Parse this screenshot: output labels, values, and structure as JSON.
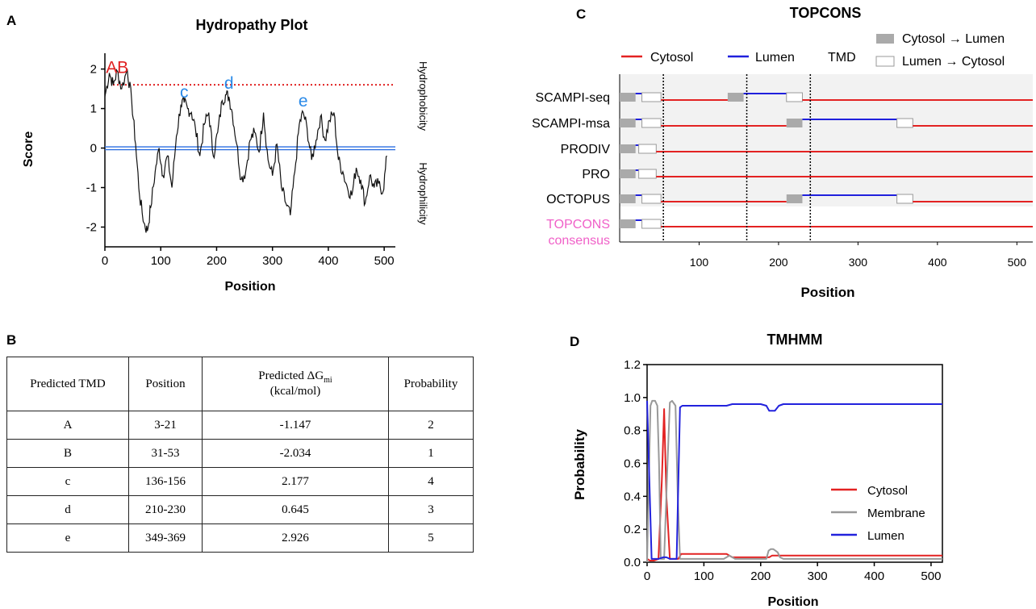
{
  "panel_labels": {
    "a": "A",
    "b": "B",
    "c": "C",
    "d": "D"
  },
  "hydro": {
    "title": "Hydropathy Plot",
    "xlabel": "Position",
    "ylabel": "Score",
    "right_label_top": "Hydrophobicity",
    "right_label_bottom": "Hydrophilicity",
    "xticks": [
      "0",
      "100",
      "200",
      "300",
      "400",
      "500"
    ],
    "yticks": [
      "2",
      "1",
      "0",
      "-1",
      "-2"
    ],
    "threshold": 1.6,
    "peak_labels": [
      {
        "text": "A",
        "x": 12,
        "y": 1.9,
        "color": "#e02020"
      },
      {
        "text": "B",
        "x": 32,
        "y": 1.9,
        "color": "#e02020"
      },
      {
        "text": "c",
        "x": 142,
        "y": 1.28,
        "color": "#2a8ae8"
      },
      {
        "text": "d",
        "x": 222,
        "y": 1.5,
        "color": "#2a8ae8"
      },
      {
        "text": "e",
        "x": 355,
        "y": 1.05,
        "color": "#2a8ae8"
      }
    ]
  },
  "table": {
    "headers": [
      "Predicted TMD",
      "Position",
      "Predicted ΔG",
      "mi",
      "(kcal/mol)",
      "Probability"
    ],
    "rows": [
      [
        "A",
        "3-21",
        "-1.147",
        "2"
      ],
      [
        "B",
        "31-53",
        "-2.034",
        "1"
      ],
      [
        "c",
        "136-156",
        "2.177",
        "4"
      ],
      [
        "d",
        "210-230",
        "0.645",
        "3"
      ],
      [
        "e",
        "349-369",
        "2.926",
        "5"
      ]
    ]
  },
  "topcons": {
    "title": "TOPCONS",
    "xlabel": "Position",
    "xticks": [
      "100",
      "200",
      "300",
      "400",
      "500"
    ],
    "legend": {
      "cytosol": "Cytosol",
      "lumen": "Lumen",
      "tmd": "TMD",
      "c2l": "Cytosol → Lumen",
      "l2c": "Lumen → Cytosol"
    },
    "colors": {
      "cytosol": "#e32222",
      "lumen": "#2020dd",
      "consensus": "#f060c8"
    },
    "tracks": [
      {
        "name": "SCAMPI-seq",
        "segments": [
          [
            0,
            20,
            "c2l"
          ],
          [
            20,
            28,
            "lumen"
          ],
          [
            28,
            52,
            "l2c"
          ],
          [
            52,
            136,
            "cyto"
          ],
          [
            136,
            156,
            "c2l"
          ],
          [
            156,
            210,
            "lumen"
          ],
          [
            210,
            230,
            "l2c"
          ],
          [
            230,
            520,
            "cyto"
          ]
        ]
      },
      {
        "name": "SCAMPI-msa",
        "segments": [
          [
            0,
            20,
            "c2l"
          ],
          [
            20,
            28,
            "lumen"
          ],
          [
            28,
            52,
            "l2c"
          ],
          [
            52,
            210,
            "cyto"
          ],
          [
            210,
            230,
            "c2l"
          ],
          [
            230,
            349,
            "lumen"
          ],
          [
            349,
            369,
            "l2c"
          ],
          [
            369,
            520,
            "cyto"
          ]
        ]
      },
      {
        "name": "PRODIV",
        "segments": [
          [
            0,
            20,
            "c2l"
          ],
          [
            20,
            24,
            "lumen"
          ],
          [
            24,
            46,
            "l2c"
          ],
          [
            46,
            520,
            "cyto"
          ]
        ]
      },
      {
        "name": "PRO",
        "segments": [
          [
            0,
            20,
            "c2l"
          ],
          [
            20,
            24,
            "lumen"
          ],
          [
            24,
            46,
            "l2c"
          ],
          [
            46,
            520,
            "cyto"
          ]
        ]
      },
      {
        "name": "OCTOPUS",
        "segments": [
          [
            0,
            20,
            "c2l"
          ],
          [
            20,
            28,
            "lumen"
          ],
          [
            28,
            52,
            "l2c"
          ],
          [
            52,
            210,
            "cyto"
          ],
          [
            210,
            230,
            "c2l"
          ],
          [
            230,
            349,
            "lumen"
          ],
          [
            349,
            369,
            "l2c"
          ],
          [
            369,
            520,
            "cyto"
          ]
        ]
      },
      {
        "name": "TOPCONS",
        "name2": "consensus",
        "segments": [
          [
            0,
            20,
            "c2l"
          ],
          [
            20,
            28,
            "lumen"
          ],
          [
            28,
            52,
            "l2c"
          ],
          [
            52,
            520,
            "cyto"
          ]
        ]
      }
    ],
    "dashed_lines": [
      55,
      160,
      240
    ]
  },
  "chart_data": [
    {
      "type": "line",
      "title": "Hydropathy Plot",
      "xlabel": "Position",
      "ylabel": "Score",
      "xlim": [
        0,
        520
      ],
      "ylim": [
        -2.5,
        2.4
      ],
      "threshold": 1.6,
      "baseline": 0,
      "series": [
        {
          "x": [
            0,
            8,
            15,
            22,
            30,
            40,
            48,
            55,
            62,
            70,
            76,
            82,
            90,
            97,
            104,
            112,
            120,
            128,
            136,
            142,
            148,
            155,
            162,
            170,
            178,
            186,
            194,
            202,
            210,
            216,
            222,
            228,
            236,
            244,
            252,
            260,
            268,
            276,
            284,
            292,
            300,
            308,
            316,
            324,
            332,
            340,
            348,
            355,
            362,
            370,
            378,
            386,
            394,
            402,
            410,
            418,
            426,
            434,
            442,
            450,
            458,
            466,
            474,
            482,
            490,
            498,
            505
          ],
          "y": [
            1.3,
            1.9,
            1.6,
            1.95,
            1.5,
            2.0,
            1.2,
            0.1,
            -1.2,
            -1.9,
            -2.1,
            -1.5,
            -0.6,
            0.0,
            -0.7,
            -0.2,
            -1.0,
            0.3,
            1.1,
            1.15,
            1.0,
            0.9,
            0.5,
            -0.2,
            0.6,
            0.9,
            -0.2,
            0.4,
            1.2,
            1.35,
            1.3,
            0.9,
            0.1,
            -0.8,
            -0.6,
            0.2,
            0.4,
            -0.1,
            0.9,
            -0.3,
            -0.7,
            0.1,
            -1.0,
            -1.4,
            -1.7,
            -0.6,
            0.6,
            0.9,
            0.5,
            -0.3,
            0.2,
            0.8,
            0.2,
            0.7,
            0.9,
            -0.3,
            -0.6,
            -1.0,
            -1.2,
            -0.5,
            -0.8,
            -1.4,
            -0.7,
            -1.0,
            -0.9,
            -1.1,
            -0.2
          ]
        }
      ]
    },
    {
      "type": "line",
      "title": "TMHMM",
      "xlabel": "Position",
      "ylabel": "Probability",
      "xlim": [
        0,
        520
      ],
      "ylim": [
        0,
        1.2
      ],
      "xticks": [
        "0",
        "100",
        "200",
        "300",
        "400",
        "500"
      ],
      "yticks": [
        "0.0",
        "0.2",
        "0.4",
        "0.6",
        "0.8",
        "1.0",
        "1.2"
      ],
      "legend_position": "bottom-right",
      "series": [
        {
          "name": "Cytosol",
          "color": "#e32222",
          "x": [
            0,
            5,
            12,
            20,
            26,
            30,
            34,
            40,
            55,
            60,
            140,
            150,
            215,
            220,
            230,
            240,
            520
          ],
          "y": [
            0.02,
            0.01,
            0.01,
            0.02,
            0.5,
            0.93,
            0.4,
            0.02,
            0.02,
            0.05,
            0.05,
            0.03,
            0.03,
            0.04,
            0.04,
            0.04,
            0.04
          ]
        },
        {
          "name": "Membrane",
          "color": "#999999",
          "x": [
            0,
            3,
            6,
            9,
            14,
            18,
            21,
            24,
            30,
            36,
            40,
            44,
            50,
            54,
            58,
            62,
            135,
            140,
            145,
            150,
            155,
            210,
            214,
            218,
            222,
            226,
            230,
            234,
            240,
            520
          ],
          "y": [
            0.0,
            0.5,
            0.95,
            0.98,
            0.98,
            0.95,
            0.6,
            0.02,
            0.02,
            0.6,
            0.97,
            0.98,
            0.95,
            0.4,
            0.02,
            0.02,
            0.02,
            0.03,
            0.04,
            0.03,
            0.02,
            0.02,
            0.07,
            0.08,
            0.08,
            0.07,
            0.06,
            0.03,
            0.02,
            0.02
          ]
        },
        {
          "name": "Lumen",
          "color": "#2222dd",
          "x": [
            0,
            4,
            8,
            16,
            20,
            28,
            34,
            40,
            52,
            58,
            62,
            140,
            150,
            200,
            210,
            215,
            225,
            232,
            240,
            520
          ],
          "y": [
            0.98,
            0.5,
            0.02,
            0.02,
            0.02,
            0.03,
            0.03,
            0.02,
            0.02,
            0.94,
            0.95,
            0.95,
            0.96,
            0.96,
            0.95,
            0.92,
            0.92,
            0.95,
            0.96,
            0.96
          ]
        }
      ]
    }
  ]
}
